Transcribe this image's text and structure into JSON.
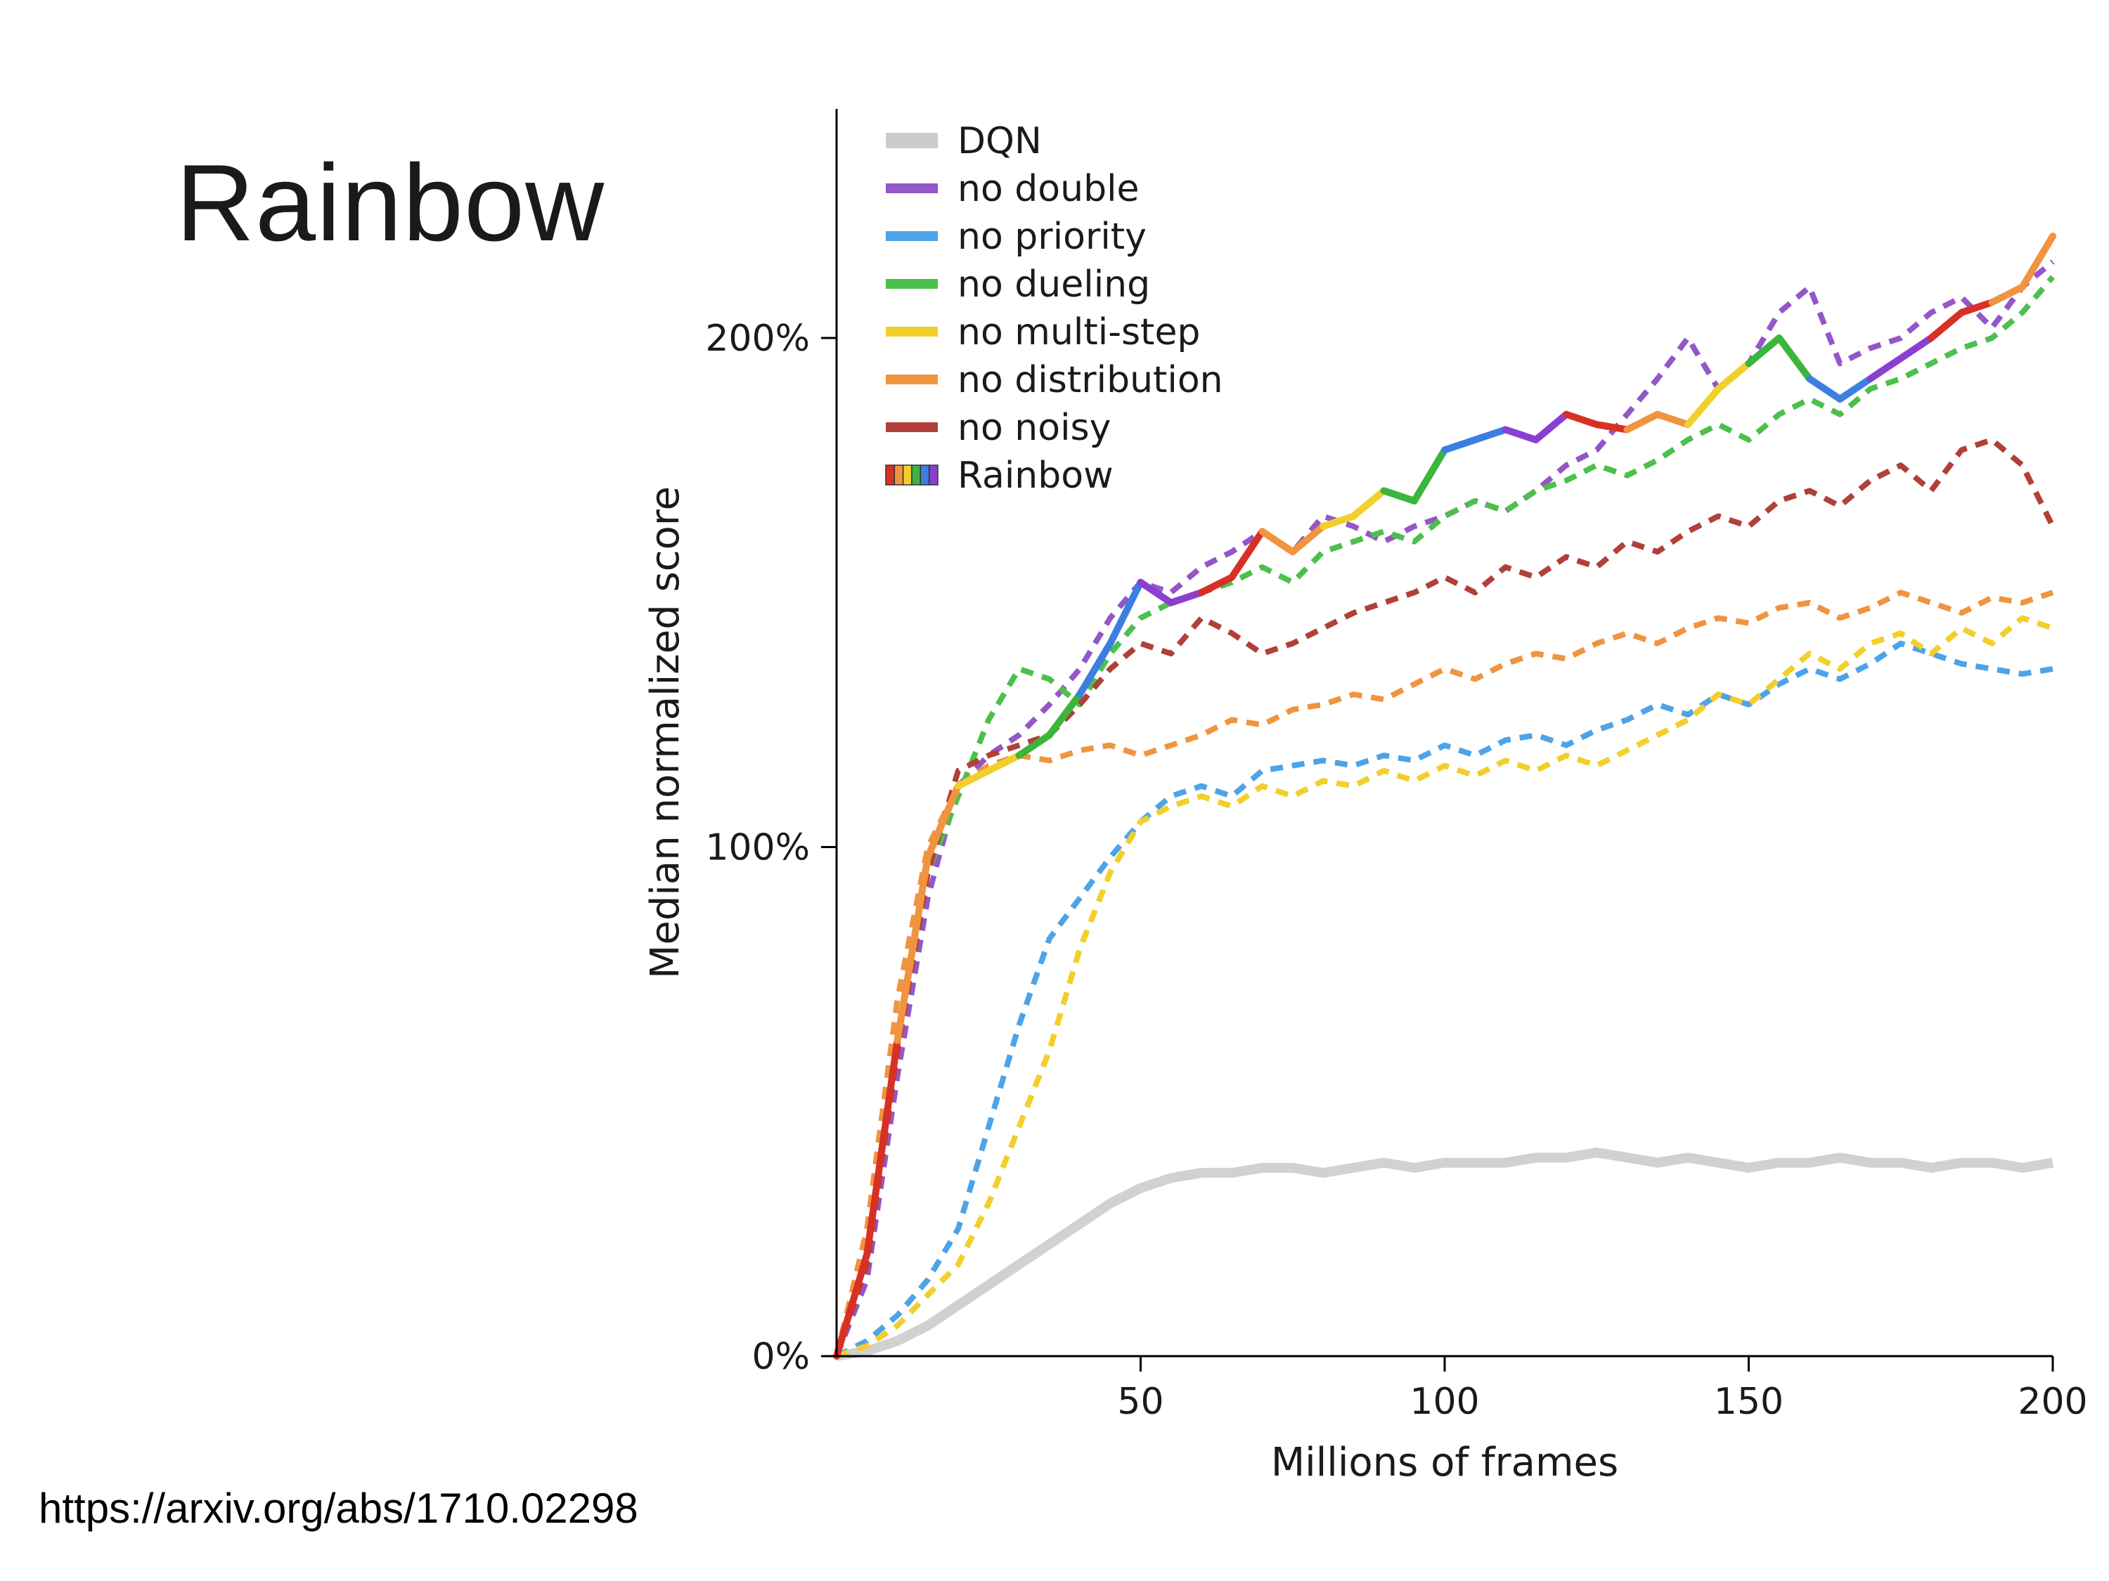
{
  "slide": {
    "title": "Rainbow",
    "source_url": "https://arxiv.org/abs/1710.02298"
  },
  "chart_data": {
    "type": "line",
    "title": "",
    "xlabel": "Millions of frames",
    "ylabel": "Median normalized score",
    "xlim": [
      0,
      200
    ],
    "ylim_percent": [
      0,
      245
    ],
    "x_ticks": [
      50,
      100,
      150,
      200
    ],
    "y_ticks": [
      {
        "value": 0,
        "label": "0%"
      },
      {
        "value": 100,
        "label": "100%"
      },
      {
        "value": 200,
        "label": "200%"
      }
    ],
    "grid": false,
    "legend_position": "upper left",
    "x": [
      0,
      5,
      10,
      15,
      20,
      25,
      30,
      35,
      40,
      45,
      50,
      55,
      60,
      65,
      70,
      75,
      80,
      85,
      90,
      95,
      100,
      105,
      110,
      115,
      120,
      125,
      130,
      135,
      140,
      145,
      150,
      155,
      160,
      165,
      170,
      175,
      180,
      185,
      190,
      195,
      200
    ],
    "series": [
      {
        "name": "DQN",
        "color": "#cccccc",
        "style": "solid",
        "width": 14,
        "values": [
          0,
          1,
          3,
          6,
          10,
          14,
          18,
          22,
          26,
          30,
          33,
          35,
          36,
          36,
          37,
          37,
          36,
          37,
          38,
          37,
          38,
          38,
          38,
          39,
          39,
          40,
          39,
          38,
          39,
          38,
          37,
          38,
          38,
          39,
          38,
          38,
          37,
          38,
          38,
          37,
          38
        ]
      },
      {
        "name": "no double",
        "color": "#9456c8",
        "style": "dashed",
        "width": 8,
        "values": [
          0,
          15,
          55,
          90,
          112,
          118,
          122,
          128,
          135,
          145,
          152,
          150,
          155,
          158,
          162,
          158,
          165,
          163,
          160,
          163,
          165,
          168,
          166,
          170,
          175,
          178,
          185,
          192,
          200,
          190,
          195,
          205,
          210,
          195,
          198,
          200,
          205,
          208,
          202,
          210,
          215
        ]
      },
      {
        "name": "no priority",
        "color": "#4da3e8",
        "style": "dashed",
        "width": 8,
        "values": [
          0,
          3,
          8,
          15,
          25,
          45,
          65,
          82,
          90,
          98,
          105,
          110,
          112,
          110,
          115,
          116,
          117,
          116,
          118,
          117,
          120,
          118,
          121,
          122,
          120,
          123,
          125,
          128,
          126,
          130,
          128,
          132,
          135,
          133,
          136,
          140,
          138,
          136,
          135,
          134,
          135
        ]
      },
      {
        "name": "no dueling",
        "color": "#4cc04c",
        "style": "dashed",
        "width": 8,
        "values": [
          0,
          20,
          60,
          95,
          110,
          125,
          135,
          133,
          128,
          138,
          145,
          148,
          150,
          152,
          155,
          152,
          158,
          160,
          162,
          160,
          165,
          168,
          166,
          170,
          172,
          175,
          173,
          176,
          180,
          183,
          180,
          185,
          188,
          185,
          190,
          192,
          195,
          198,
          200,
          205,
          212
        ]
      },
      {
        "name": "no multi-step",
        "color": "#f2cf2a",
        "style": "dashed",
        "width": 8,
        "values": [
          0,
          2,
          6,
          12,
          18,
          30,
          45,
          60,
          80,
          95,
          105,
          108,
          110,
          108,
          112,
          110,
          113,
          112,
          115,
          113,
          116,
          114,
          117,
          115,
          118,
          116,
          119,
          122,
          125,
          130,
          128,
          133,
          138,
          135,
          140,
          142,
          138,
          143,
          140,
          145,
          143
        ]
      },
      {
        "name": "no distribution",
        "color": "#f09440",
        "style": "dashed",
        "width": 8,
        "values": [
          0,
          25,
          70,
          100,
          112,
          116,
          118,
          117,
          119,
          120,
          118,
          120,
          122,
          125,
          124,
          127,
          128,
          130,
          129,
          132,
          135,
          133,
          136,
          138,
          137,
          140,
          142,
          140,
          143,
          145,
          144,
          147,
          148,
          145,
          147,
          150,
          148,
          146,
          149,
          148,
          150
        ]
      },
      {
        "name": "no noisy",
        "color": "#b04038",
        "style": "dashed",
        "width": 8,
        "values": [
          0,
          18,
          60,
          95,
          115,
          118,
          120,
          122,
          128,
          135,
          140,
          138,
          145,
          142,
          138,
          140,
          143,
          146,
          148,
          150,
          153,
          150,
          155,
          153,
          157,
          155,
          160,
          158,
          162,
          165,
          163,
          168,
          170,
          167,
          172,
          175,
          170,
          178,
          180,
          175,
          163
        ]
      },
      {
        "name": "Rainbow",
        "color": "multicolor",
        "style": "solid",
        "width": 10,
        "palette": [
          "#d93025",
          "#f09440",
          "#f2cf2a",
          "#3cb53c",
          "#3d7fe0",
          "#8a3fd1"
        ],
        "values": [
          0,
          20,
          62,
          98,
          112,
          115,
          118,
          122,
          130,
          140,
          152,
          148,
          150,
          153,
          162,
          158,
          163,
          165,
          170,
          168,
          178,
          180,
          182,
          180,
          185,
          183,
          182,
          185,
          183,
          190,
          195,
          200,
          192,
          188,
          192,
          196,
          200,
          205,
          207,
          210,
          220
        ]
      }
    ]
  }
}
